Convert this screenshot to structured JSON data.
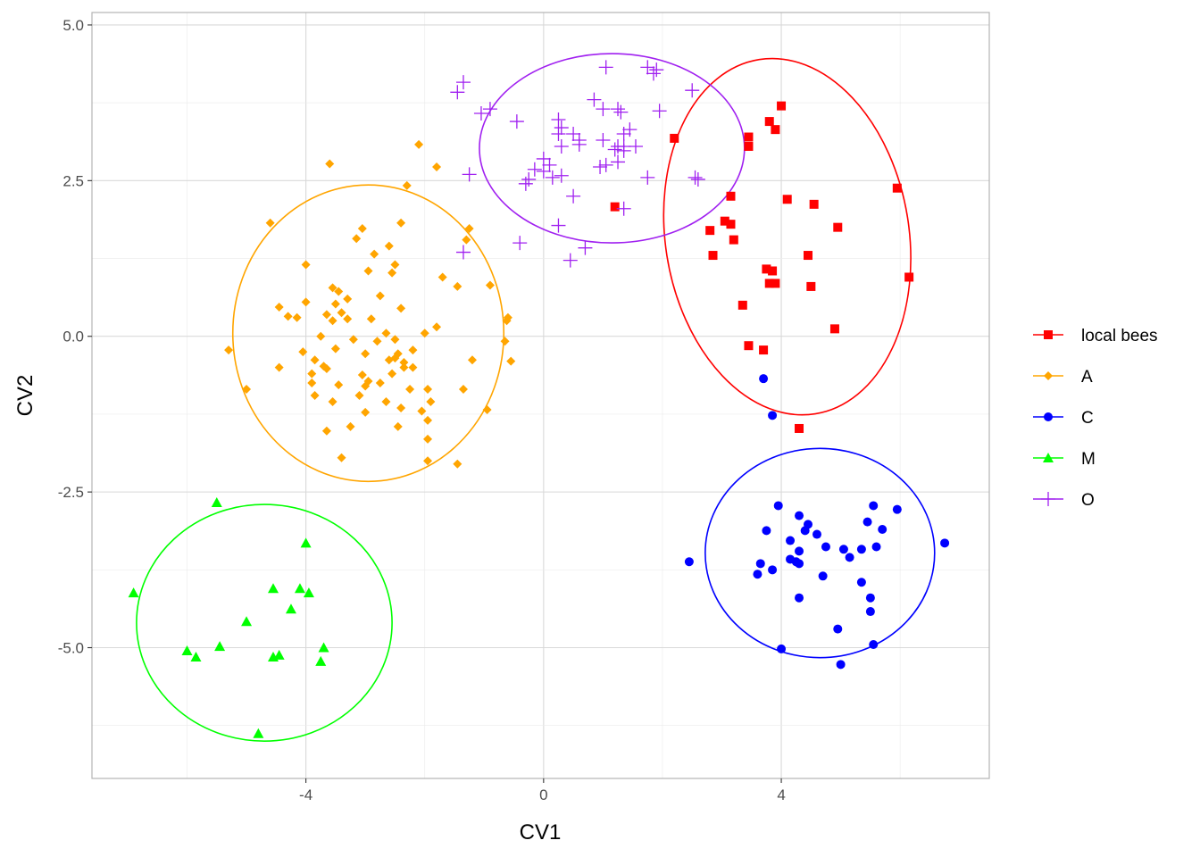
{
  "chart_data": {
    "type": "scatter",
    "title": "",
    "xlabel": "CV1",
    "ylabel": "CV2",
    "xlim": [
      -7.6,
      7.5
    ],
    "ylim": [
      -7.1,
      5.2
    ],
    "x_ticks": [
      -4,
      0,
      4
    ],
    "x_tick_labels": [
      "-4",
      "0",
      "4"
    ],
    "y_ticks": [
      -5,
      -2.5,
      0,
      2.5,
      5
    ],
    "y_tick_labels": [
      "-5.0",
      "-2.5",
      "0.0",
      "2.5",
      "5.0"
    ],
    "grid": true,
    "legend_position": "right",
    "series": [
      {
        "name": "local bees",
        "color": "#FF0000",
        "marker": "square",
        "ellipse": {
          "cx": 4.1,
          "cy": 1.6,
          "rx": 2.05,
          "ry": 2.88,
          "angle_deg": 9
        },
        "points": [
          [
            2.2,
            3.18
          ],
          [
            1.2,
            2.08
          ],
          [
            3.45,
            3.2
          ],
          [
            3.45,
            3.05
          ],
          [
            3.8,
            3.45
          ],
          [
            3.9,
            3.32
          ],
          [
            4.0,
            3.7
          ],
          [
            3.15,
            2.25
          ],
          [
            2.8,
            1.7
          ],
          [
            3.05,
            1.85
          ],
          [
            3.15,
            1.8
          ],
          [
            2.85,
            1.3
          ],
          [
            3.2,
            1.55
          ],
          [
            4.1,
            2.2
          ],
          [
            4.55,
            2.12
          ],
          [
            4.95,
            1.75
          ],
          [
            5.95,
            2.38
          ],
          [
            6.15,
            0.95
          ],
          [
            3.75,
            1.08
          ],
          [
            3.85,
            1.05
          ],
          [
            4.45,
            1.3
          ],
          [
            4.5,
            0.8
          ],
          [
            3.8,
            0.85
          ],
          [
            3.9,
            0.85
          ],
          [
            3.35,
            0.5
          ],
          [
            4.9,
            0.12
          ],
          [
            3.45,
            -0.15
          ],
          [
            3.7,
            -0.22
          ],
          [
            4.3,
            -1.48
          ]
        ]
      },
      {
        "name": "A",
        "color": "#FFA500",
        "marker": "diamond",
        "ellipse": {
          "cx": -2.95,
          "cy": 0.05,
          "rx": 2.28,
          "ry": 2.38,
          "angle_deg": 0
        },
        "points": [
          [
            -2.1,
            3.08
          ],
          [
            -3.6,
            2.77
          ],
          [
            -1.8,
            2.72
          ],
          [
            -2.3,
            2.42
          ],
          [
            -4.6,
            1.82
          ],
          [
            -2.4,
            1.82
          ],
          [
            -3.05,
            1.73
          ],
          [
            -1.25,
            1.73
          ],
          [
            -3.15,
            1.57
          ],
          [
            -1.3,
            1.55
          ],
          [
            -2.6,
            1.45
          ],
          [
            -2.85,
            1.32
          ],
          [
            -4.0,
            1.15
          ],
          [
            -2.5,
            1.15
          ],
          [
            -2.95,
            1.05
          ],
          [
            -2.55,
            1.02
          ],
          [
            -1.7,
            0.95
          ],
          [
            -3.55,
            0.78
          ],
          [
            -3.45,
            0.72
          ],
          [
            -1.45,
            0.8
          ],
          [
            -0.9,
            0.82
          ],
          [
            -2.75,
            0.65
          ],
          [
            -3.3,
            0.6
          ],
          [
            -4.0,
            0.55
          ],
          [
            -3.5,
            0.52
          ],
          [
            -4.45,
            0.47
          ],
          [
            -2.4,
            0.45
          ],
          [
            -3.65,
            0.35
          ],
          [
            -3.4,
            0.38
          ],
          [
            -4.3,
            0.32
          ],
          [
            -4.15,
            0.3
          ],
          [
            -3.3,
            0.28
          ],
          [
            -3.55,
            0.25
          ],
          [
            -2.9,
            0.28
          ],
          [
            -0.6,
            0.3
          ],
          [
            -0.62,
            0.25
          ],
          [
            -1.8,
            0.15
          ],
          [
            -2.0,
            0.05
          ],
          [
            -3.75,
            0.0
          ],
          [
            -2.65,
            0.05
          ],
          [
            -3.2,
            -0.05
          ],
          [
            -2.8,
            -0.08
          ],
          [
            -2.5,
            -0.05
          ],
          [
            -0.65,
            -0.08
          ],
          [
            -5.3,
            -0.22
          ],
          [
            -4.05,
            -0.25
          ],
          [
            -3.5,
            -0.2
          ],
          [
            -3.0,
            -0.28
          ],
          [
            -2.45,
            -0.28
          ],
          [
            -2.2,
            -0.22
          ],
          [
            -3.85,
            -0.38
          ],
          [
            -2.6,
            -0.38
          ],
          [
            -2.5,
            -0.35
          ],
          [
            -2.35,
            -0.42
          ],
          [
            -1.2,
            -0.38
          ],
          [
            -0.55,
            -0.4
          ],
          [
            -3.7,
            -0.48
          ],
          [
            -3.65,
            -0.52
          ],
          [
            -4.45,
            -0.5
          ],
          [
            -2.35,
            -0.5
          ],
          [
            -2.2,
            -0.5
          ],
          [
            -3.9,
            -0.6
          ],
          [
            -2.55,
            -0.6
          ],
          [
            -3.05,
            -0.62
          ],
          [
            -2.95,
            -0.72
          ],
          [
            -2.75,
            -0.75
          ],
          [
            -3.45,
            -0.78
          ],
          [
            -3.9,
            -0.75
          ],
          [
            -3.0,
            -0.8
          ],
          [
            -2.25,
            -0.85
          ],
          [
            -1.95,
            -0.85
          ],
          [
            -1.35,
            -0.85
          ],
          [
            -5.0,
            -0.85
          ],
          [
            -3.85,
            -0.95
          ],
          [
            -3.1,
            -0.95
          ],
          [
            -2.65,
            -1.05
          ],
          [
            -1.9,
            -1.05
          ],
          [
            -3.55,
            -1.05
          ],
          [
            -2.4,
            -1.15
          ],
          [
            -0.95,
            -1.18
          ],
          [
            -2.05,
            -1.2
          ],
          [
            -3.0,
            -1.22
          ],
          [
            -3.25,
            -1.45
          ],
          [
            -2.45,
            -1.45
          ],
          [
            -1.95,
            -1.35
          ],
          [
            -3.65,
            -1.52
          ],
          [
            -1.95,
            -1.65
          ],
          [
            -1.95,
            -2.0
          ],
          [
            -1.45,
            -2.05
          ],
          [
            -3.4,
            -1.95
          ]
        ]
      },
      {
        "name": "C",
        "color": "#0000FF",
        "marker": "circle",
        "ellipse": {
          "cx": 4.65,
          "cy": -3.48,
          "rx": 1.93,
          "ry": 1.68,
          "angle_deg": 0
        },
        "points": [
          [
            3.7,
            -0.68
          ],
          [
            3.85,
            -1.27
          ],
          [
            3.95,
            -2.72
          ],
          [
            3.75,
            -3.12
          ],
          [
            4.3,
            -2.88
          ],
          [
            4.45,
            -3.02
          ],
          [
            4.4,
            -3.12
          ],
          [
            4.6,
            -3.18
          ],
          [
            4.15,
            -3.28
          ],
          [
            5.55,
            -2.72
          ],
          [
            5.95,
            -2.78
          ],
          [
            5.45,
            -2.98
          ],
          [
            5.7,
            -3.1
          ],
          [
            6.75,
            -3.32
          ],
          [
            4.75,
            -3.38
          ],
          [
            5.05,
            -3.42
          ],
          [
            5.35,
            -3.42
          ],
          [
            5.6,
            -3.38
          ],
          [
            4.3,
            -3.45
          ],
          [
            5.15,
            -3.55
          ],
          [
            4.15,
            -3.58
          ],
          [
            4.25,
            -3.62
          ],
          [
            4.3,
            -3.65
          ],
          [
            3.65,
            -3.65
          ],
          [
            3.85,
            -3.75
          ],
          [
            2.45,
            -3.62
          ],
          [
            3.6,
            -3.82
          ],
          [
            4.7,
            -3.85
          ],
          [
            5.35,
            -3.95
          ],
          [
            4.3,
            -4.2
          ],
          [
            5.5,
            -4.2
          ],
          [
            5.5,
            -4.42
          ],
          [
            4.95,
            -4.7
          ],
          [
            5.55,
            -4.95
          ],
          [
            4.0,
            -5.02
          ],
          [
            5.0,
            -5.27
          ]
        ]
      },
      {
        "name": "M",
        "color": "#00FF00",
        "marker": "triangle",
        "ellipse": {
          "cx": -4.7,
          "cy": -4.6,
          "rx": 2.15,
          "ry": 1.9,
          "angle_deg": 0
        },
        "points": [
          [
            -5.5,
            -2.67
          ],
          [
            -4.0,
            -3.32
          ],
          [
            -6.9,
            -4.12
          ],
          [
            -4.55,
            -4.05
          ],
          [
            -4.1,
            -4.05
          ],
          [
            -3.95,
            -4.12
          ],
          [
            -4.25,
            -4.38
          ],
          [
            -5.0,
            -4.58
          ],
          [
            -5.45,
            -4.98
          ],
          [
            -3.7,
            -5.0
          ],
          [
            -6.0,
            -5.05
          ],
          [
            -5.85,
            -5.15
          ],
          [
            -4.55,
            -5.15
          ],
          [
            -4.45,
            -5.12
          ],
          [
            -3.75,
            -5.22
          ],
          [
            -4.8,
            -6.38
          ]
        ]
      },
      {
        "name": "O",
        "color": "#A020F0",
        "marker": "plus",
        "ellipse": {
          "cx": 1.15,
          "cy": 3.02,
          "rx": 2.23,
          "ry": 1.52,
          "angle_deg": 0
        },
        "points": [
          [
            -1.45,
            3.92
          ],
          [
            -1.35,
            4.08
          ],
          [
            1.05,
            4.32
          ],
          [
            1.75,
            4.32
          ],
          [
            1.9,
            4.28
          ],
          [
            1.85,
            4.22
          ],
          [
            2.5,
            3.95
          ],
          [
            0.85,
            3.8
          ],
          [
            1.0,
            3.65
          ],
          [
            1.25,
            3.65
          ],
          [
            1.3,
            3.6
          ],
          [
            1.95,
            3.62
          ],
          [
            -1.05,
            3.58
          ],
          [
            -0.9,
            3.65
          ],
          [
            -0.45,
            3.45
          ],
          [
            0.25,
            3.48
          ],
          [
            0.3,
            3.35
          ],
          [
            1.45,
            3.32
          ],
          [
            0.25,
            3.25
          ],
          [
            0.5,
            3.25
          ],
          [
            1.35,
            3.25
          ],
          [
            0.6,
            3.15
          ],
          [
            0.3,
            3.05
          ],
          [
            1.0,
            3.15
          ],
          [
            1.25,
            3.05
          ],
          [
            1.35,
            3.05
          ],
          [
            1.55,
            3.05
          ],
          [
            0.6,
            3.08
          ],
          [
            1.2,
            3.0
          ],
          [
            1.35,
            2.98
          ],
          [
            0.0,
            2.85
          ],
          [
            0.1,
            2.75
          ],
          [
            1.25,
            2.8
          ],
          [
            0.95,
            2.72
          ],
          [
            1.05,
            2.75
          ],
          [
            -0.15,
            2.68
          ],
          [
            0.0,
            2.65
          ],
          [
            -0.25,
            2.52
          ],
          [
            0.3,
            2.58
          ],
          [
            0.15,
            2.55
          ],
          [
            -1.25,
            2.6
          ],
          [
            1.75,
            2.55
          ],
          [
            2.55,
            2.55
          ],
          [
            2.6,
            2.52
          ],
          [
            -0.3,
            2.45
          ],
          [
            0.5,
            2.25
          ],
          [
            1.35,
            2.05
          ],
          [
            0.25,
            1.78
          ],
          [
            -1.35,
            1.35
          ],
          [
            0.7,
            1.42
          ],
          [
            0.45,
            1.22
          ],
          [
            -0.4,
            1.5
          ]
        ]
      }
    ]
  }
}
